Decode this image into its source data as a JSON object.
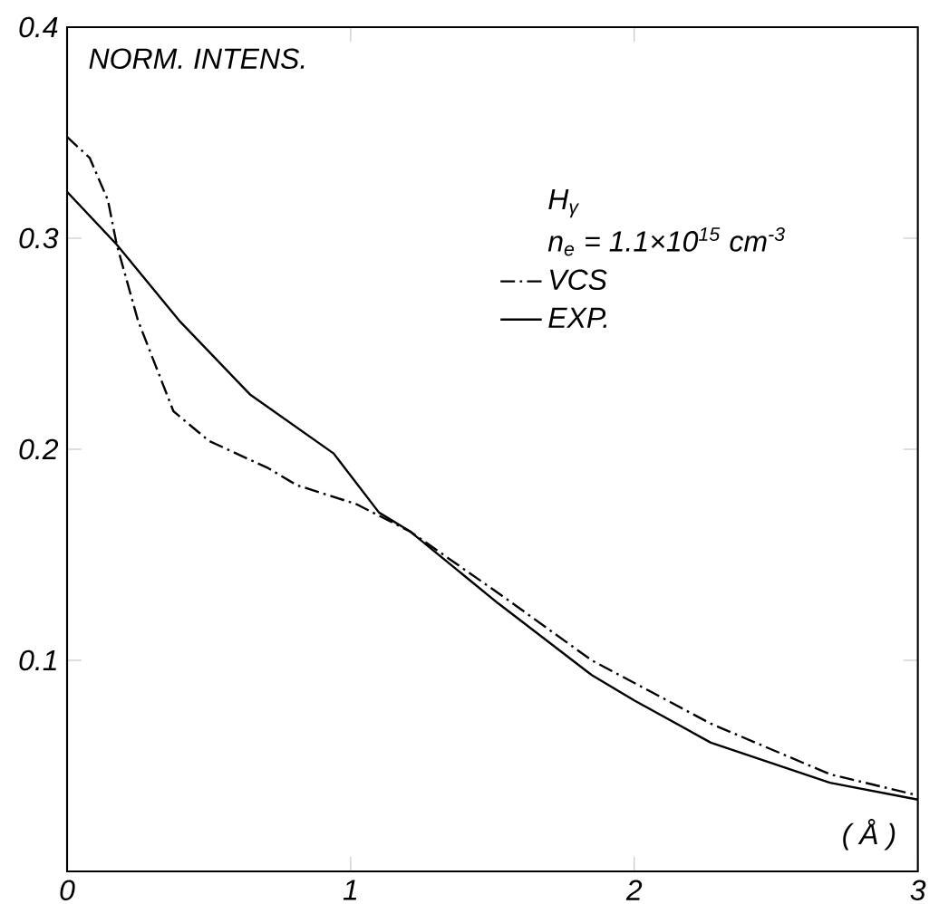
{
  "chart_data": {
    "type": "line",
    "xlabel": "( Å )",
    "ylabel": "NORM. INTENS.",
    "legend_title": "H$_{γ}$",
    "annotations": [
      "n$_{e}$ = 1.1×10$^{15}$ cm$^{-3}$"
    ],
    "xlim": [
      0,
      3
    ],
    "ylim": [
      0,
      0.4
    ],
    "xticks": [
      0,
      1,
      2,
      3
    ],
    "yticks": [
      0.1,
      0.2,
      0.3,
      0.4
    ],
    "legend": "top right",
    "marker": "none",
    "grid": false,
    "series": [
      {
        "name": "VCS",
        "color": "#000000",
        "line_style": "dashdot",
        "x": [
          0,
          0.08,
          0.144,
          0.175,
          0.25,
          0.375,
          0.5,
          0.71,
          0.81,
          1.02,
          1.21,
          1.54,
          1.85,
          2.27,
          2.69,
          3.0
        ],
        "values": [
          0.348,
          0.338,
          0.318,
          0.297,
          0.261,
          0.218,
          0.204,
          0.191,
          0.183,
          0.174,
          0.161,
          0.13,
          0.1,
          0.07,
          0.046,
          0.036
        ]
      },
      {
        "name": "EXP.",
        "color": "#000000",
        "line_style": "solid",
        "x": [
          0,
          0.175,
          0.395,
          0.645,
          0.94,
          1.1,
          1.21,
          1.52,
          1.85,
          2.0,
          2.27,
          2.69,
          3.0
        ],
        "values": [
          0.322,
          0.297,
          0.261,
          0.226,
          0.198,
          0.17,
          0.161,
          0.127,
          0.093,
          0.081,
          0.061,
          0.042,
          0.034
        ]
      }
    ]
  }
}
